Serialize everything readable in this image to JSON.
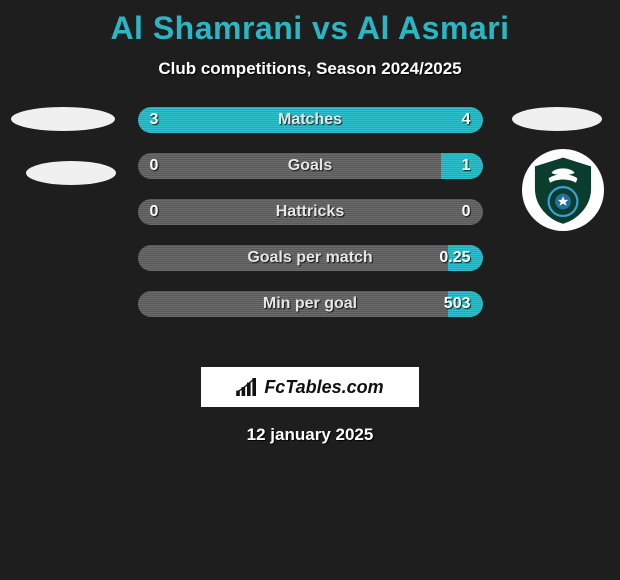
{
  "title": "Al Shamrani vs Al Asmari",
  "subtitle": "Club competitions, Season 2024/2025",
  "date": "12 january 2025",
  "brand": "FcTables.com",
  "colors": {
    "accent": "#2bb6c4",
    "fill_top": "#2fbfcd",
    "fill_bot": "#27a9b6",
    "track_top": "#6a6a6a",
    "track_bot": "#5a5a5a",
    "background": "#1e1e1e",
    "text": "#ffffff"
  },
  "rows": [
    {
      "label": "Matches",
      "left": "3",
      "right": "4",
      "left_pct": 40,
      "right_pct": 60
    },
    {
      "label": "Goals",
      "left": "0",
      "right": "1",
      "left_pct": 0,
      "right_pct": 12
    },
    {
      "label": "Hattricks",
      "left": "0",
      "right": "0",
      "left_pct": 0,
      "right_pct": 0
    },
    {
      "label": "Goals per match",
      "left": "",
      "right": "0.25",
      "left_pct": 0,
      "right_pct": 10
    },
    {
      "label": "Min per goal",
      "left": "",
      "right": "503",
      "left_pct": 0,
      "right_pct": 10
    }
  ],
  "left_team": {
    "name": "Al Shamrani",
    "badges": [
      "placeholder",
      "placeholder"
    ]
  },
  "right_team": {
    "name": "Al Asmari",
    "badges": [
      "placeholder",
      "al-ahli"
    ]
  }
}
